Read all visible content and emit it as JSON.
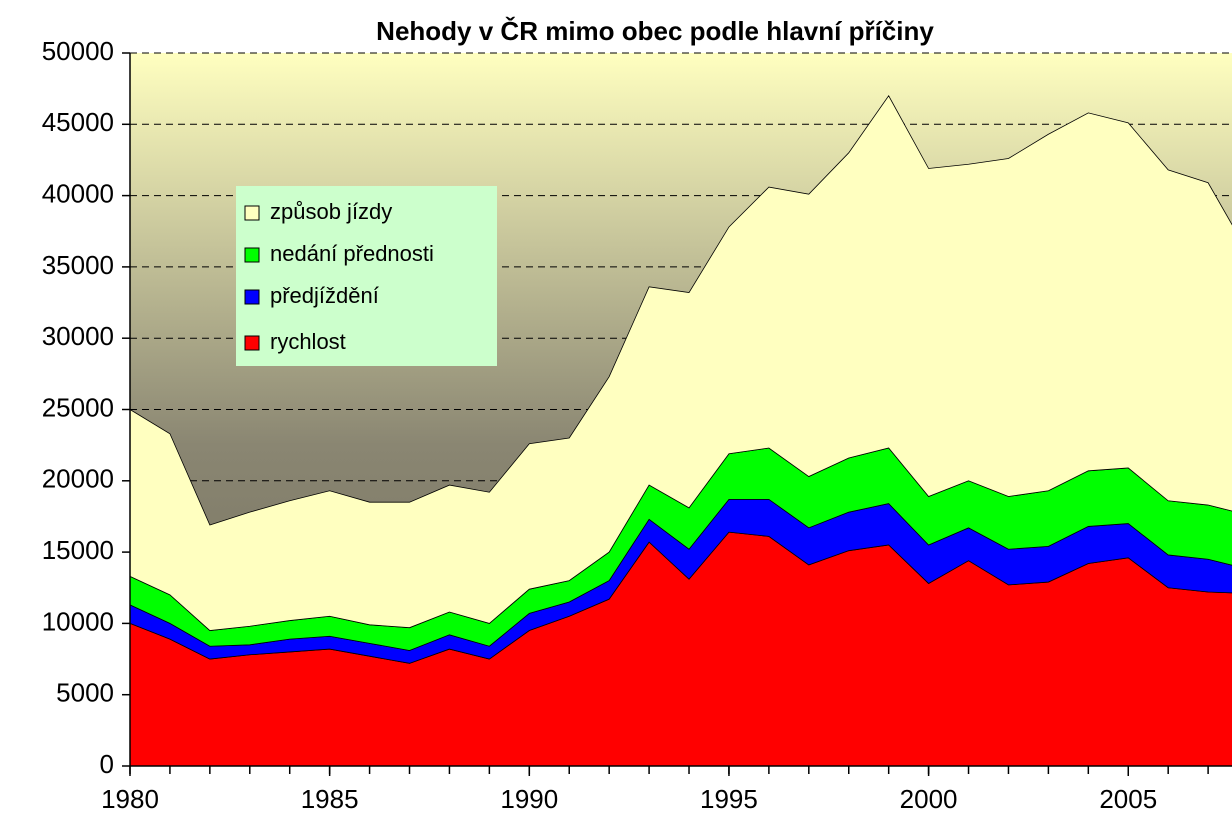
{
  "chart_data": {
    "type": "stacked_area",
    "title": "Nehody v ČR mimo obec podle hlavní příčiny",
    "x": [
      1980,
      1981,
      1982,
      1983,
      1984,
      1985,
      1986,
      1987,
      1988,
      1989,
      1990,
      1991,
      1992,
      1993,
      1994,
      1995,
      1996,
      1997,
      1998,
      1999,
      2000,
      2001,
      2002,
      2003,
      2004,
      2005,
      2006,
      2007,
      2008
    ],
    "series": [
      {
        "name": "rychlost",
        "color": "#ff0000",
        "values": [
          10000,
          8900,
          7500,
          7800,
          8000,
          8200,
          7700,
          7200,
          8200,
          7500,
          9500,
          10500,
          11700,
          15700,
          13100,
          16400,
          16100,
          14100,
          15100,
          15500,
          12800,
          14400,
          12700,
          12900,
          14200,
          14600,
          12500,
          12200,
          12100
        ]
      },
      {
        "name": "předjíždění",
        "color": "#0000ff",
        "values": [
          1300,
          1100,
          900,
          700,
          900,
          900,
          900,
          900,
          1000,
          900,
          1200,
          1000,
          1300,
          1600,
          2100,
          2300,
          2600,
          2600,
          2700,
          2900,
          2700,
          2300,
          2500,
          2500,
          2600,
          2400,
          2300,
          2300,
          1700
        ]
      },
      {
        "name": "nedání přednosti",
        "color": "#00ff00",
        "values": [
          2000,
          2000,
          1100,
          1300,
          1300,
          1400,
          1300,
          1600,
          1600,
          1600,
          1700,
          1500,
          2000,
          2400,
          2900,
          3200,
          3600,
          3600,
          3800,
          3900,
          3400,
          3300,
          3700,
          3900,
          3900,
          3900,
          3800,
          3800,
          3800
        ]
      },
      {
        "name": "způsob jízdy",
        "color": "#ffffc0",
        "values": [
          11700,
          11300,
          7400,
          8000,
          8400,
          8800,
          8600,
          8800,
          8900,
          9200,
          10200,
          10000,
          12300,
          13900,
          15100,
          15900,
          18300,
          19800,
          21400,
          24700,
          23000,
          22200,
          23700,
          25000,
          25100,
          24200,
          23200,
          22600,
          18400
        ]
      }
    ],
    "xlim": [
      1980,
      2008
    ],
    "xticks": [
      1980,
      1985,
      1990,
      1995,
      2000,
      2005
    ],
    "ylim": [
      0,
      50000
    ],
    "yticks": [
      0,
      5000,
      10000,
      15000,
      20000,
      25000,
      30000,
      35000,
      40000,
      45000,
      50000
    ],
    "grid": true,
    "legend": "upper left"
  }
}
